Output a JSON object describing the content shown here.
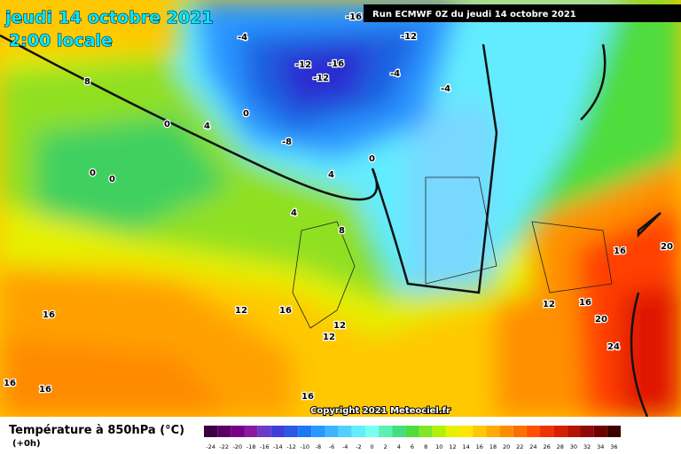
{
  "header": {
    "date": "jeudi 14 octobre 2021",
    "time": "2:00 locale",
    "run": "Run ECMWF 0Z du jeudi 14 octobre 2021"
  },
  "footer": {
    "copyright": "Copyright 2021 Meteociel.fr",
    "legend_title": "Température à 850hPa (°C)",
    "lead": "(+0h)"
  },
  "colorbar": {
    "labels": [
      "-24",
      "-22",
      "-20",
      "-18",
      "-16",
      "-14",
      "-12",
      "-10",
      "-8",
      "-6",
      "-4",
      "-2",
      "0",
      "2",
      "4",
      "6",
      "8",
      "10",
      "12",
      "14",
      "16",
      "18",
      "20",
      "22",
      "24",
      "26",
      "28",
      "30",
      "32",
      "34",
      "36"
    ],
    "colors": [
      "#3a0040",
      "#5a0066",
      "#7a0088",
      "#8c1aa0",
      "#6a3cc8",
      "#4040d8",
      "#2a5ae8",
      "#1a78f0",
      "#2a96ff",
      "#3cb4ff",
      "#50d2ff",
      "#64ecff",
      "#78fff0",
      "#5cf0b4",
      "#40e080",
      "#50dc3c",
      "#80e628",
      "#b4f000",
      "#e6f000",
      "#ffe600",
      "#ffc800",
      "#ffaa00",
      "#ff8c00",
      "#ff6e00",
      "#ff5000",
      "#f03200",
      "#d81e00",
      "#b41400",
      "#900a0a",
      "#6e0000",
      "#3c0000"
    ]
  },
  "map": {
    "labels": [
      "-16",
      "-4",
      "-12",
      "-12",
      "-16",
      "-12",
      "-4",
      "-4",
      "0",
      "0",
      "4",
      "-8",
      "0",
      "0",
      "0",
      "4",
      "4",
      "8",
      "8",
      "16",
      "20",
      "12",
      "16",
      "20",
      "24",
      "16",
      "12",
      "16",
      "12",
      "12",
      "16",
      "16",
      "16"
    ]
  }
}
